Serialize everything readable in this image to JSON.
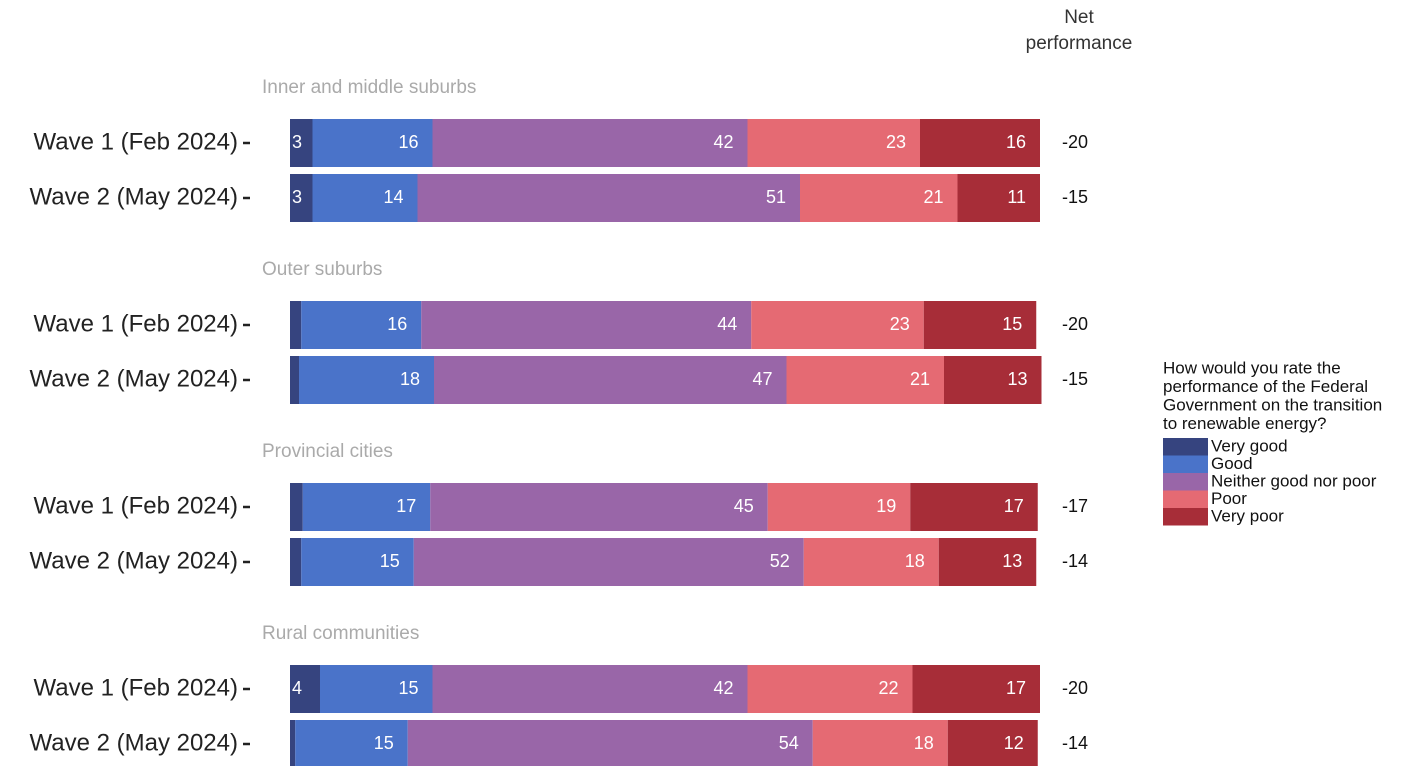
{
  "chart_data": {
    "type": "bar",
    "stacked": true,
    "net_title": [
      "Net",
      "performance"
    ],
    "legend_title": [
      "How would you rate the",
      "performance of the Federal",
      "Government on the transition",
      "to renewable energy?"
    ],
    "panels": [
      "Inner and middle suburbs",
      "Outer suburbs",
      "Provincial cities",
      "Rural communities"
    ],
    "categories": [
      "Wave 1 (Feb 2024)",
      "Wave 2 (May 2024)",
      "Wave 1 (Feb 2024)",
      "Wave 2 (May 2024)",
      "Wave 1 (Feb 2024)",
      "Wave 2 (May 2024)",
      "Wave 1 (Feb 2024)",
      "Wave 2 (May 2024)"
    ],
    "xlim": [
      0,
      100
    ],
    "series": [
      {
        "name": "Very good",
        "color": "#36447f",
        "values": [
          3,
          3,
          1.5,
          1.2,
          1.7,
          1.5,
          4,
          0.7
        ],
        "value_labels": [
          "3",
          "3",
          null,
          null,
          null,
          null,
          "4",
          null
        ]
      },
      {
        "name": "Good",
        "color": "#4a73c9",
        "values": [
          16,
          14,
          16,
          18,
          17,
          15,
          15,
          15
        ]
      },
      {
        "name": "Neither good nor poor",
        "color": "#9966a8",
        "values": [
          42,
          51,
          44,
          47,
          45,
          52,
          42,
          54
        ]
      },
      {
        "name": "Poor",
        "color": "#e56a73",
        "values": [
          23,
          21,
          23,
          21,
          19,
          18,
          22,
          18
        ]
      },
      {
        "name": "Very poor",
        "color": "#a72d38",
        "values": [
          16,
          11,
          15,
          13,
          17,
          13,
          17,
          12
        ]
      }
    ],
    "net_values": [
      -20,
      -15,
      -20,
      -15,
      -17,
      -14,
      -20,
      -14
    ]
  }
}
